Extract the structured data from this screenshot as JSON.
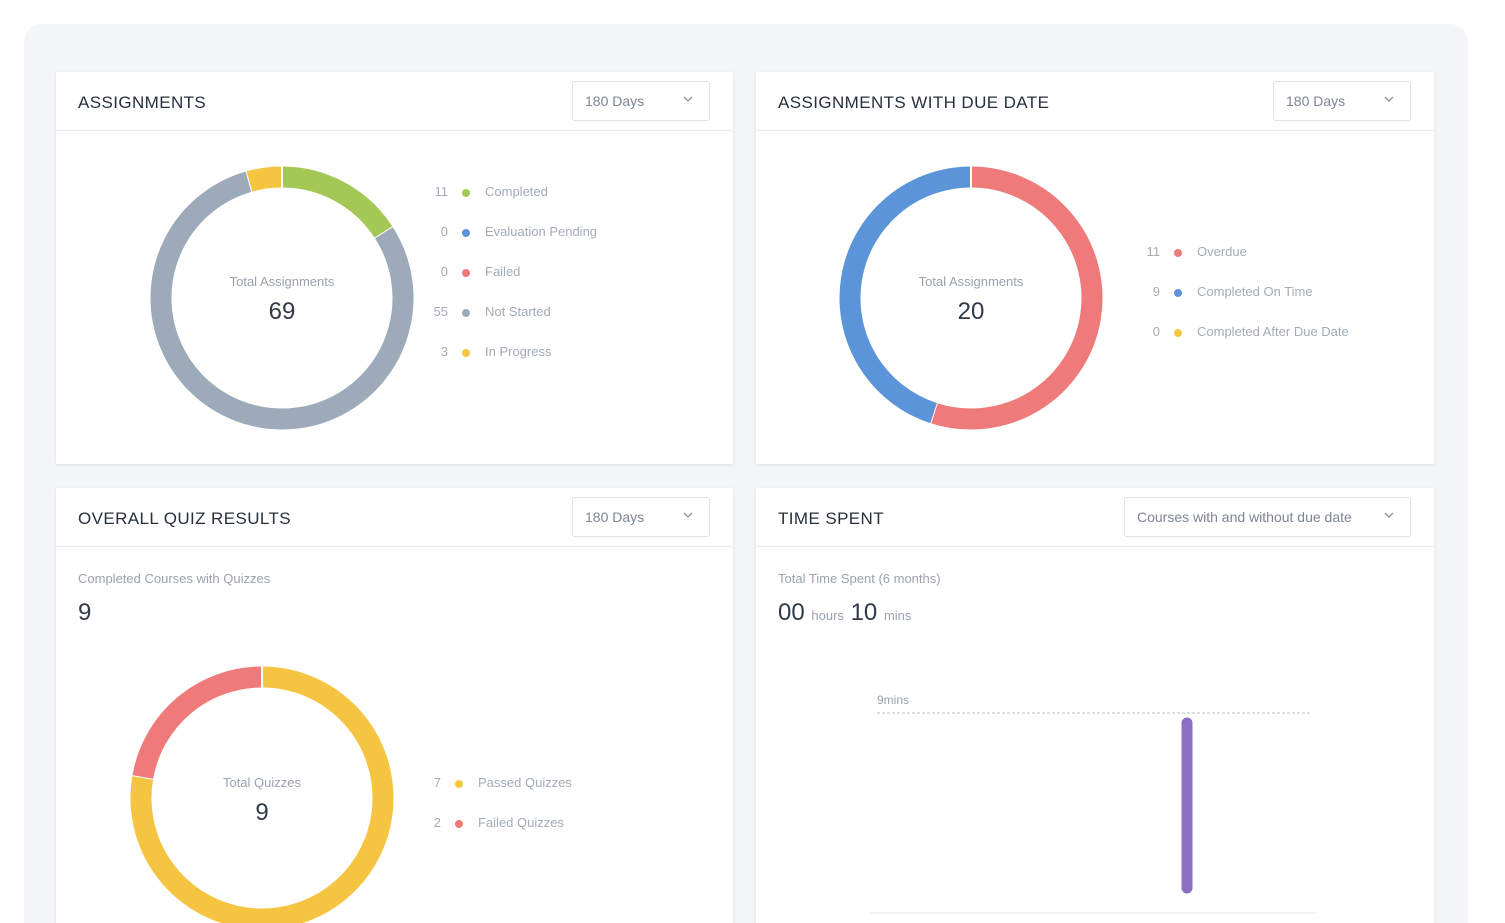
{
  "assignments": {
    "title": "ASSIGNMENTS",
    "period": "180 Days",
    "center_label": "Total Assignments",
    "center_value": "69",
    "legend": [
      {
        "count": "11",
        "label": "Completed",
        "value": 11,
        "color": "#a3c855"
      },
      {
        "count": "0",
        "label": "Evaluation Pending",
        "value": 0,
        "color": "#5b94d9"
      },
      {
        "count": "0",
        "label": "Failed",
        "value": 0,
        "color": "#ee7a7a"
      },
      {
        "count": "55",
        "label": "Not Started",
        "value": 55,
        "color": "#9caab9"
      },
      {
        "count": "3",
        "label": "In Progress",
        "value": 3,
        "color": "#f5c542"
      }
    ]
  },
  "due_date": {
    "title": "ASSIGNMENTS WITH DUE DATE",
    "period": "180 Days",
    "center_label": "Total Assignments",
    "center_value": "20",
    "legend": [
      {
        "count": "11",
        "label": "Overdue",
        "value": 11,
        "color": "#ee7a7a"
      },
      {
        "count": "9",
        "label": "Completed On Time",
        "value": 9,
        "color": "#5b94d9"
      },
      {
        "count": "0",
        "label": "Completed After Due Date",
        "value": 0,
        "color": "#f5c542"
      }
    ]
  },
  "quiz": {
    "title": "OVERALL QUIZ RESULTS",
    "period": "180 Days",
    "sub_label": "Completed Courses with Quizzes",
    "sub_value": "9",
    "center_label": "Total Quizzes",
    "center_value": "9",
    "legend": [
      {
        "count": "7",
        "label": "Passed Quizzes",
        "value": 7,
        "color": "#f5c542"
      },
      {
        "count": "2",
        "label": "Failed Quizzes",
        "value": 2,
        "color": "#ee7a7a"
      }
    ]
  },
  "time_spent": {
    "title": "TIME SPENT",
    "filter": "Courses with and without due date",
    "sub_label": "Total Time Spent (6 months)",
    "hours": "00",
    "hours_unit": "hours",
    "mins": "10",
    "mins_unit": "mins",
    "ref_line_label": "9mins",
    "bar_color": "#8c6fc4"
  },
  "chart_data": [
    {
      "type": "pie",
      "title": "ASSIGNMENTS",
      "categories": [
        "Completed",
        "Evaluation Pending",
        "Failed",
        "Not Started",
        "In Progress"
      ],
      "values": [
        11,
        0,
        0,
        55,
        3
      ]
    },
    {
      "type": "pie",
      "title": "ASSIGNMENTS WITH DUE DATE",
      "categories": [
        "Overdue",
        "Completed On Time",
        "Completed After Due Date"
      ],
      "values": [
        11,
        9,
        0
      ]
    },
    {
      "type": "pie",
      "title": "OVERALL QUIZ RESULTS",
      "categories": [
        "Passed Quizzes",
        "Failed Quizzes"
      ],
      "values": [
        7,
        2
      ]
    }
  ]
}
